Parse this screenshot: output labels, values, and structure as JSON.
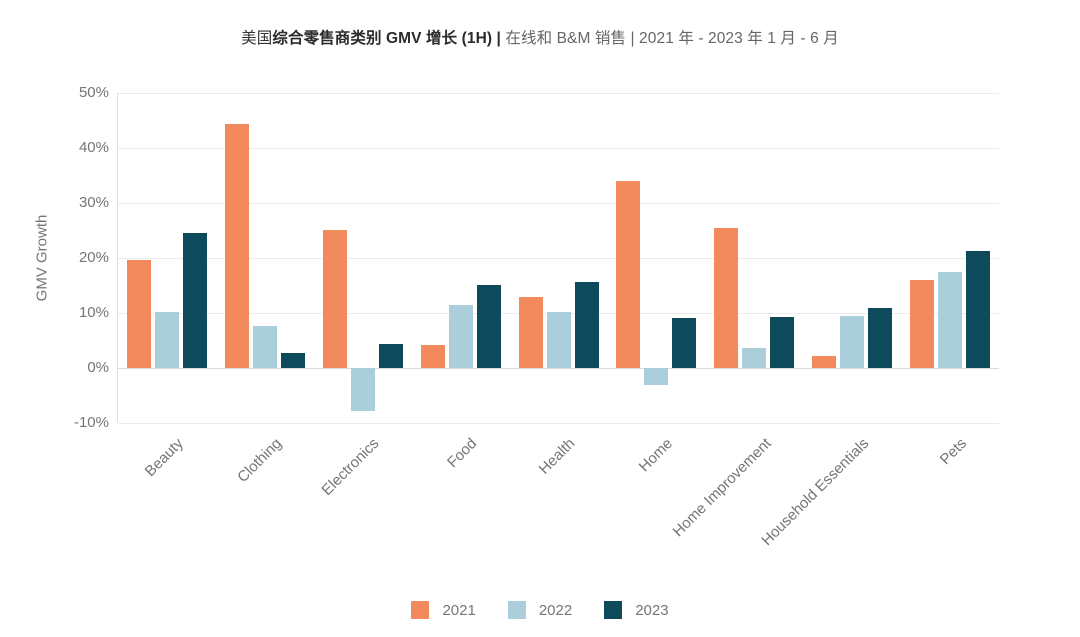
{
  "title": {
    "prefix": "美国",
    "emphasis": "综合零售商类别 GMV 增长 (1H) | ",
    "suffix": "在线和 B&M 销售 | 2021 年 - 2023 年 1 月 - 6 月"
  },
  "chart_data": {
    "type": "bar",
    "title": "美国综合零售商类别 GMV 增长 (1H) | 在线和 B&M 销售 | 2021 年 - 2023 年 1 月 - 6 月",
    "xlabel": "",
    "ylabel": "GMV Growth",
    "ylim": [
      -10,
      50
    ],
    "grid": true,
    "legend_position": "bottom",
    "categories": [
      "Beauty",
      "Clothing",
      "Electronics",
      "Food",
      "Health",
      "Home",
      "Home Improvement",
      "Household Essentials",
      "Pets"
    ],
    "series": [
      {
        "name": "2021",
        "color": "#F28A5E",
        "values": [
          19.6,
          44.4,
          25.1,
          4.1,
          12.9,
          34.0,
          25.5,
          2.2,
          16.0
        ]
      },
      {
        "name": "2022",
        "color": "#AACFDA",
        "values": [
          10.2,
          7.7,
          -7.9,
          11.5,
          10.1,
          -3.1,
          3.7,
          9.5,
          17.4
        ]
      },
      {
        "name": "2023",
        "color": "#0F4A5C",
        "values": [
          24.5,
          2.7,
          4.4,
          15.1,
          15.7,
          9.1,
          9.3,
          11.0,
          21.3
        ]
      }
    ],
    "yticks": [
      {
        "value": 50,
        "label": "50%"
      },
      {
        "value": 40,
        "label": "40%"
      },
      {
        "value": 30,
        "label": "30%"
      },
      {
        "value": 20,
        "label": "20%"
      },
      {
        "value": 10,
        "label": "10%"
      },
      {
        "value": 0,
        "label": "0%"
      },
      {
        "value": -10,
        "label": "-10%"
      }
    ],
    "colors": {
      "grid": "#ECECEC",
      "zero_line": "#D9D9D9",
      "axis_line": "#E0E0E0",
      "tick_text": "#757575",
      "title_dark": "#2B2B2B",
      "title_muted": "#666666"
    }
  }
}
